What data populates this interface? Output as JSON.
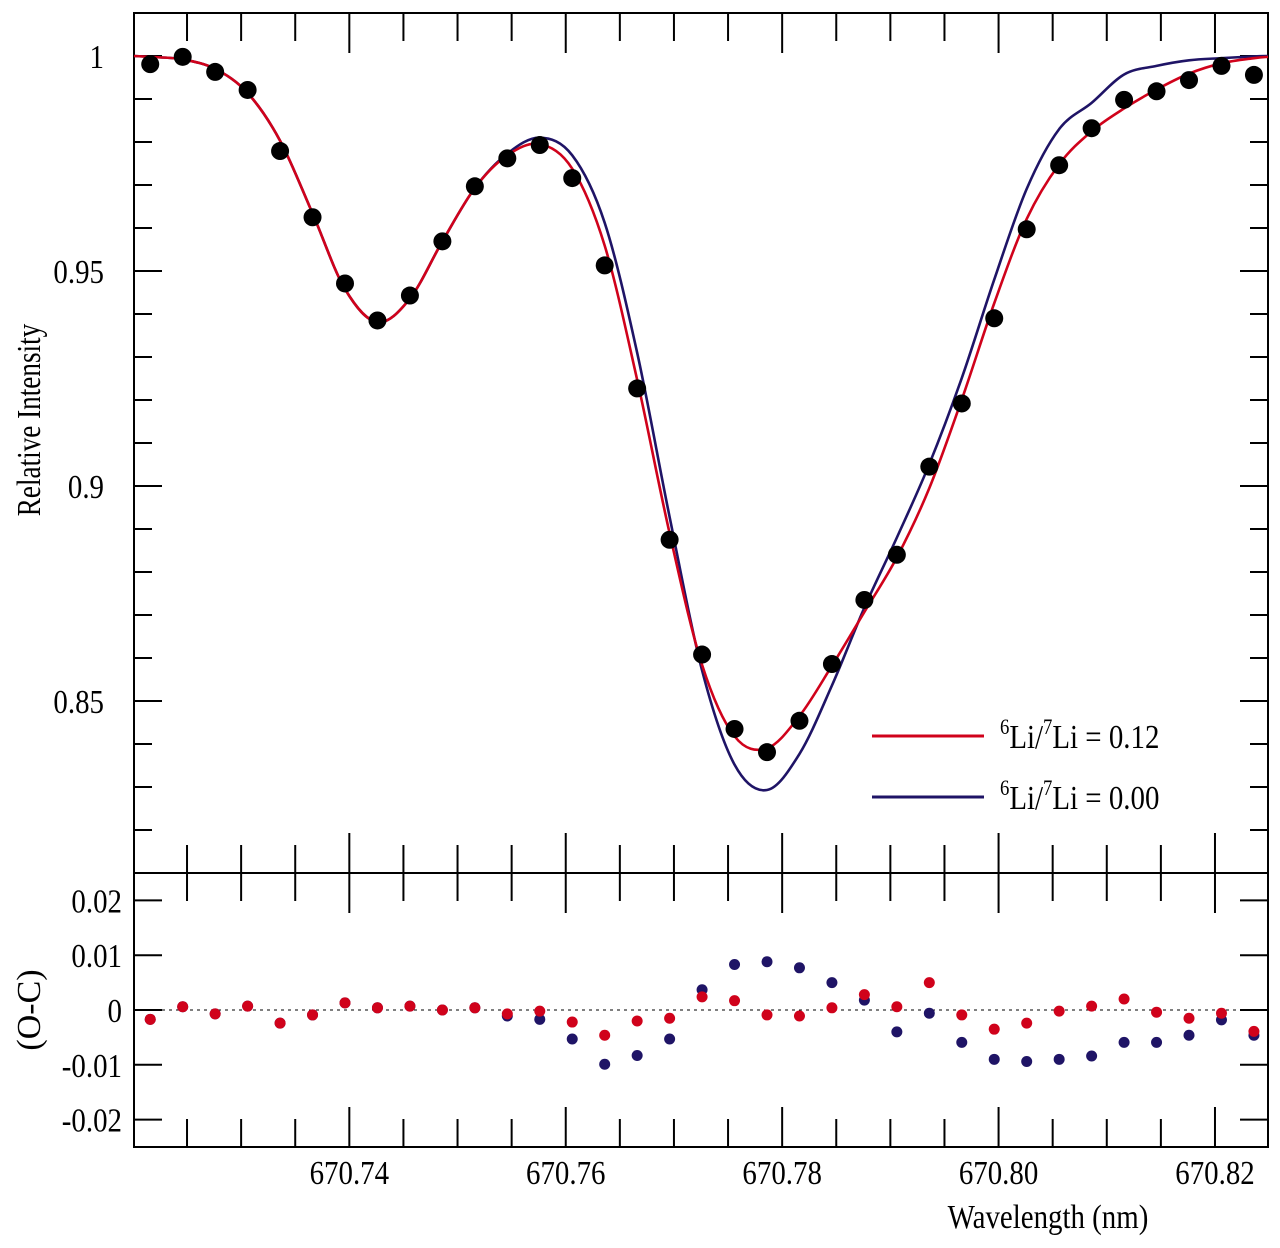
{
  "chart_data": [
    {
      "type": "line",
      "panel": "upper",
      "xlabel": "Wavelength (nm)",
      "ylabel": "Relative Intensity",
      "xlim": [
        670.7201,
        670.8249
      ],
      "ylim": [
        0.81,
        1.01
      ],
      "yticks": [
        0.85,
        0.9,
        0.95,
        1
      ],
      "ytick_labels": [
        "0.85",
        "0.9",
        "0.95",
        "1"
      ],
      "legend_placement": "lower-right",
      "grid": false,
      "observed": {
        "color": "#000000",
        "x": [
          670.7216,
          670.7246,
          670.7276,
          670.7306,
          670.7336,
          670.7366,
          670.7396,
          670.7426,
          670.7456,
          670.7486,
          670.7516,
          670.7546,
          670.7576,
          670.7606,
          670.7636,
          670.7666,
          670.7696,
          670.7726,
          670.7756,
          670.7786,
          670.7816,
          670.7846,
          670.7876,
          670.7906,
          670.7936,
          670.7966,
          670.7996,
          670.8026,
          670.8056,
          670.8086,
          670.8116,
          670.8146,
          670.8176,
          670.8206,
          670.8236
        ],
        "y": [
          0.9981,
          0.9998,
          0.9963,
          0.9921,
          0.9779,
          0.9625,
          0.9471,
          0.9385,
          0.9443,
          0.9569,
          0.9697,
          0.9762,
          0.9793,
          0.9716,
          0.9513,
          0.9227,
          0.8875,
          0.8608,
          0.8435,
          0.8381,
          0.8454,
          0.8586,
          0.8735,
          0.884,
          0.9045,
          0.9192,
          0.939,
          0.9597,
          0.9746,
          0.9832,
          0.9898,
          0.9918,
          0.9944,
          0.9977,
          0.9956
        ]
      },
      "series": [
        {
          "name": "⁶Li/⁷Li = 0.12",
          "legend": {
            "iso_a": "6",
            "a": "Li/",
            "iso_b": "7",
            "b": "Li = 0.12"
          },
          "color": "#d0021b",
          "x": [
            670.7201,
            670.7216,
            670.7246,
            670.7276,
            670.7306,
            670.7336,
            670.7366,
            670.7396,
            670.7426,
            670.7456,
            670.7486,
            670.7516,
            670.7546,
            670.7576,
            670.7606,
            670.7636,
            670.7666,
            670.7696,
            670.7726,
            670.7756,
            670.7786,
            670.7816,
            670.7846,
            670.7876,
            670.7906,
            670.7936,
            670.7966,
            670.7996,
            670.8026,
            670.8056,
            670.8086,
            670.8116,
            670.8146,
            670.8176,
            670.8206,
            670.8236,
            670.8249
          ],
          "y": [
            1.0,
            0.9998,
            0.9992,
            0.997,
            0.9914,
            0.9803,
            0.9634,
            0.9458,
            0.9381,
            0.9436,
            0.9569,
            0.9693,
            0.9769,
            0.9795,
            0.9738,
            0.9559,
            0.9247,
            0.889,
            0.8584,
            0.8418,
            0.839,
            0.8465,
            0.8582,
            0.8707,
            0.8834,
            0.8995,
            0.9201,
            0.9425,
            0.9621,
            0.9748,
            0.9825,
            0.9878,
            0.9922,
            0.9959,
            0.9983,
            0.9995,
            0.9998
          ]
        },
        {
          "name": "⁶Li/⁷Li = 0.00",
          "legend": {
            "iso_a": "6",
            "a": "Li/",
            "iso_b": "7",
            "b": "Li = 0.00"
          },
          "color": "#1f1466",
          "x": [
            670.7201,
            670.7216,
            670.7246,
            670.7276,
            670.7306,
            670.7336,
            670.7366,
            670.7396,
            670.7426,
            670.7456,
            670.7486,
            670.7516,
            670.7546,
            670.7576,
            670.7606,
            670.7636,
            670.7666,
            670.7696,
            670.7726,
            670.7756,
            670.7786,
            670.7816,
            670.7846,
            670.7876,
            670.7906,
            670.7936,
            670.7966,
            670.7996,
            670.8026,
            670.8056,
            670.8086,
            670.8116,
            670.8146,
            670.8176,
            670.8206,
            670.8236,
            670.8249
          ],
          "y": [
            1.0,
            0.9998,
            0.9992,
            0.997,
            0.9914,
            0.9803,
            0.9634,
            0.9458,
            0.9381,
            0.9436,
            0.9569,
            0.9693,
            0.9773,
            0.981,
            0.9769,
            0.9612,
            0.931,
            0.8928,
            0.8571,
            0.8352,
            0.8293,
            0.8377,
            0.8536,
            0.8717,
            0.888,
            0.9051,
            0.9251,
            0.948,
            0.9691,
            0.983,
            0.9891,
            0.9957,
            0.9977,
            0.999,
            0.9995,
            0.9999,
            1.0
          ]
        }
      ]
    },
    {
      "type": "scatter",
      "panel": "lower",
      "xlabel": "Wavelength (nm)",
      "ylabel": "(O-C)",
      "xlim": [
        670.7201,
        670.8249
      ],
      "ylim": [
        -0.025,
        0.025
      ],
      "yticks": [
        -0.02,
        -0.01,
        0,
        0.01,
        0.02
      ],
      "ytick_labels": [
        "-0.02",
        "-0.01",
        "0",
        "0.01",
        "0.02"
      ],
      "xticks": [
        670.74,
        670.76,
        670.78,
        670.8,
        670.82
      ],
      "xtick_labels": [
        "670.74",
        "670.76",
        "670.78",
        "670.80",
        "670.82"
      ],
      "zero_line": "dotted",
      "x": [
        670.7216,
        670.7246,
        670.7276,
        670.7306,
        670.7336,
        670.7366,
        670.7396,
        670.7426,
        670.7456,
        670.7486,
        670.7516,
        670.7546,
        670.7576,
        670.7606,
        670.7636,
        670.7666,
        670.7696,
        670.7726,
        670.7756,
        670.7786,
        670.7816,
        670.7846,
        670.7876,
        670.7906,
        670.7936,
        670.7966,
        670.7996,
        670.8026,
        670.8056,
        670.8086,
        670.8116,
        670.8146,
        670.8176,
        670.8206,
        670.8236
      ],
      "series": [
        {
          "color": "#1f1466",
          "values": [
            -0.0017,
            0.0006,
            -0.0007,
            0.0007,
            -0.0024,
            -0.0009,
            0.0013,
            0.0004,
            0.0007,
            0,
            0.0004,
            -0.0011,
            -0.0017,
            -0.0053,
            -0.0099,
            -0.0083,
            -0.0053,
            0.0037,
            0.0083,
            0.0088,
            0.0077,
            0.005,
            0.0018,
            -0.004,
            -0.0006,
            -0.0059,
            -0.009,
            -0.0094,
            -0.009,
            -0.0084,
            -0.0059,
            -0.0059,
            -0.0046,
            -0.0018,
            -0.0046
          ]
        },
        {
          "color": "#d0021b",
          "values": [
            -0.0017,
            0.0006,
            -0.0007,
            0.0007,
            -0.0024,
            -0.0009,
            0.0013,
            0.0004,
            0.0007,
            0,
            0.0004,
            -0.0007,
            -0.0002,
            -0.0022,
            -0.0046,
            -0.002,
            -0.0015,
            0.0024,
            0.0017,
            -0.0009,
            -0.0011,
            0.0004,
            0.0028,
            0.0006,
            0.005,
            -0.0009,
            -0.0035,
            -0.0024,
            -0.0002,
            0.0007,
            0.002,
            -0.0004,
            -0.0015,
            -0.0006,
            -0.0039
          ]
        }
      ]
    }
  ]
}
